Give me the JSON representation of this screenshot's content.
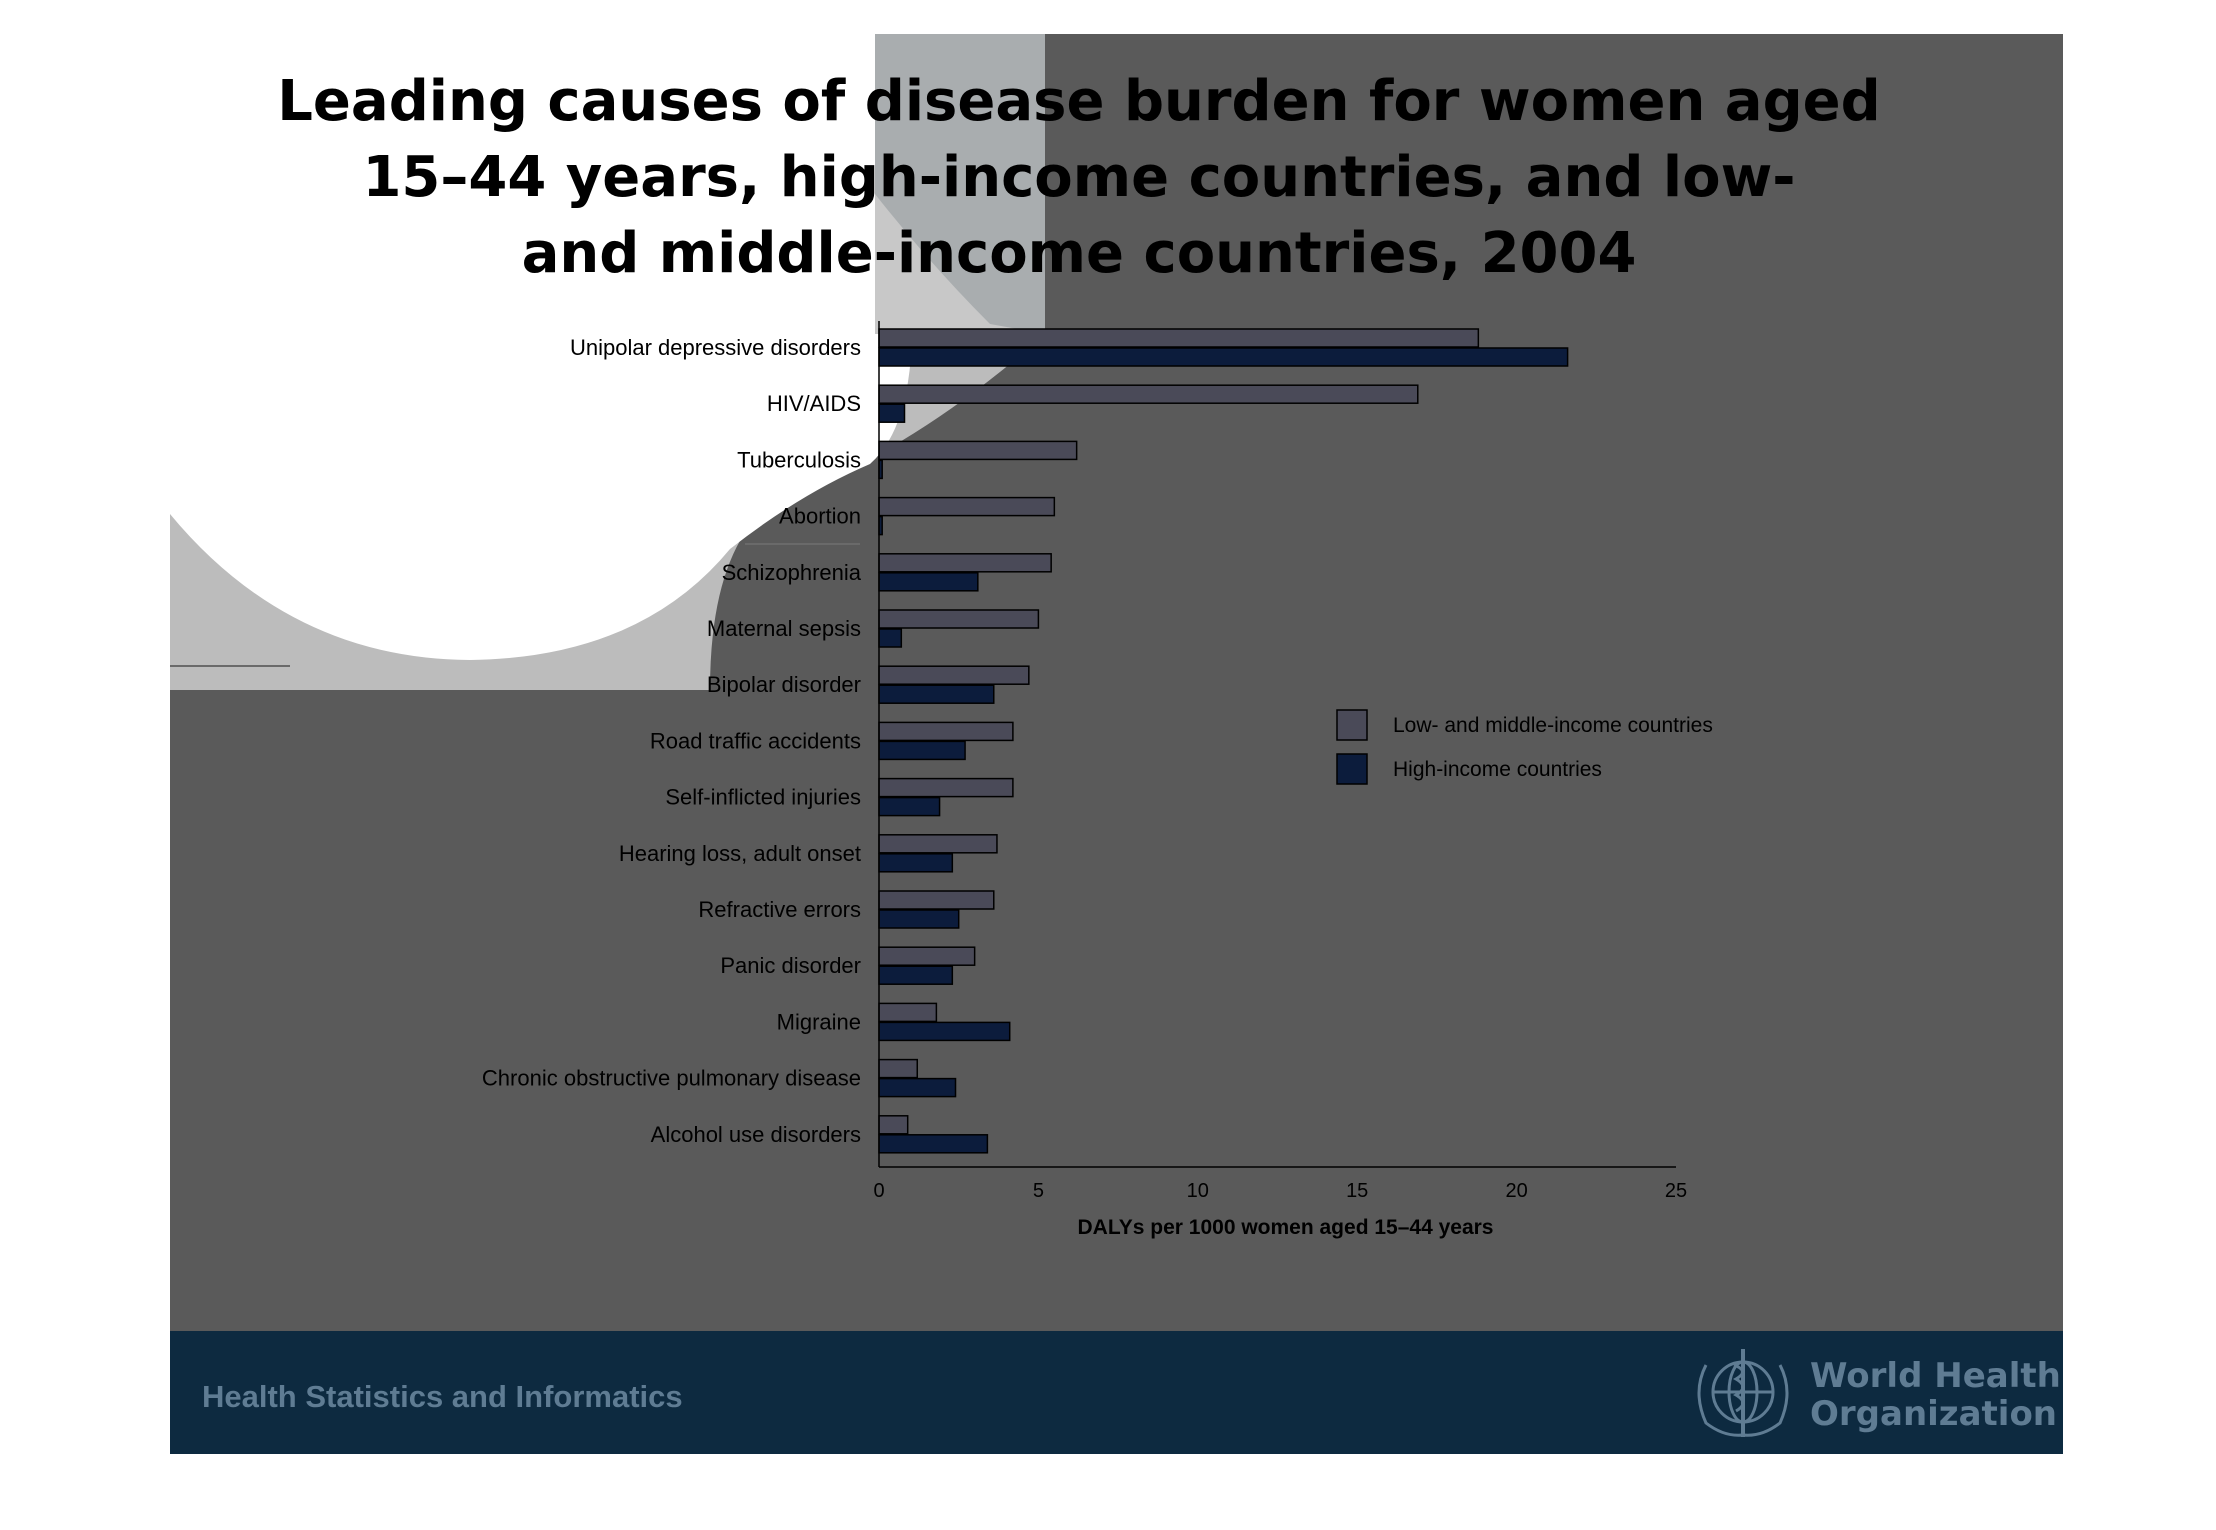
{
  "title_lines": [
    "Leading causes of disease burden for women aged",
    "15–44 years, high-income countries, and low-",
    "and middle-income countries, 2004"
  ],
  "footer": {
    "left_text": "Health Statistics and Informatics",
    "org_line1": "World Health",
    "org_line2": "Organization"
  },
  "colors": {
    "slide_background": "#5a5a5a",
    "footer_background": "#0d2a40",
    "low_middle_income": "#4a4a58",
    "high_income": "#0c1c3c"
  },
  "chart_data": {
    "type": "bar",
    "orientation": "horizontal",
    "categories": [
      "Unipolar depressive disorders",
      "HIV/AIDS",
      "Tuberculosis",
      "Abortion",
      "Schizophrenia",
      "Maternal sepsis",
      "Bipolar disorder",
      "Road traffic accidents",
      "Self-inflicted injuries",
      "Hearing loss, adult onset",
      "Refractive errors",
      "Panic disorder",
      "Migraine",
      "Chronic obstructive pulmonary disease",
      "Alcohol use disorders"
    ],
    "series": [
      {
        "name": "Low- and middle-income countries",
        "values": [
          18.8,
          16.9,
          6.2,
          5.5,
          5.4,
          5.0,
          4.7,
          4.2,
          4.2,
          3.7,
          3.6,
          3.0,
          1.8,
          1.2,
          0.9
        ]
      },
      {
        "name": "High-income countries",
        "values": [
          21.6,
          0.8,
          0.1,
          0.1,
          3.1,
          0.7,
          3.6,
          2.7,
          1.9,
          2.3,
          2.5,
          2.3,
          4.1,
          2.4,
          3.4
        ]
      }
    ],
    "xlabel": "DALYs per 1000 women aged 15–44 years",
    "xlim": [
      0,
      25
    ],
    "xticks": [
      "0",
      "5",
      "10",
      "15",
      "20",
      "25"
    ],
    "legend_position": "right",
    "grid": false
  }
}
